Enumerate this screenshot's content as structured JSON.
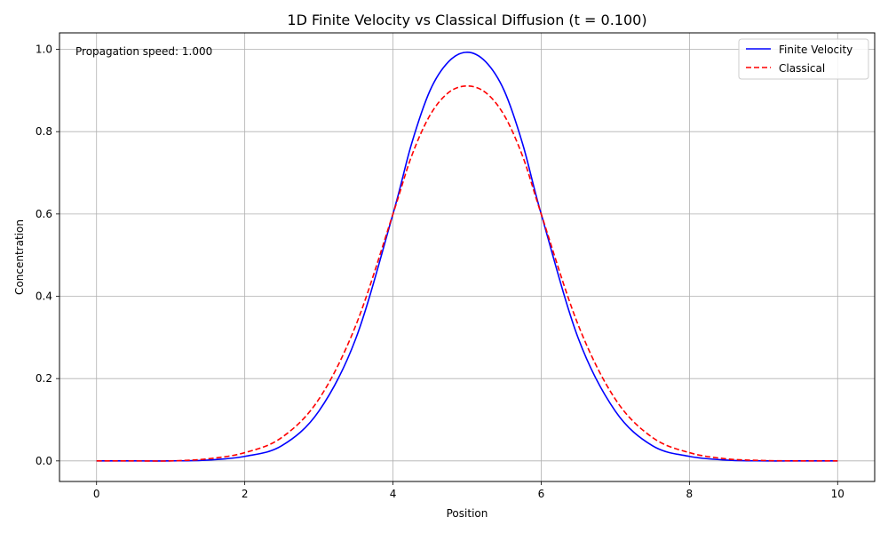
{
  "chart_data": {
    "type": "line",
    "title": "1D Finite Velocity vs Classical Diffusion (t = 0.100)",
    "xlabel": "Position",
    "ylabel": "Concentration",
    "xlim": [
      -0.5,
      10.5
    ],
    "ylim": [
      -0.05,
      1.04
    ],
    "xticks": [
      0,
      2,
      4,
      6,
      8,
      10
    ],
    "yticks": [
      0.0,
      0.2,
      0.4,
      0.6,
      0.8,
      1.0
    ],
    "xtick_labels": [
      "0",
      "2",
      "4",
      "6",
      "8",
      "10"
    ],
    "ytick_labels": [
      "0.0",
      "0.2",
      "0.4",
      "0.6",
      "0.8",
      "1.0"
    ],
    "grid": true,
    "legend_position": "top-right",
    "annotation": "Propagation speed: 1.000",
    "x": [
      0,
      0.5,
      1,
      1.5,
      2,
      2.5,
      3,
      3.5,
      4,
      4.25,
      4.5,
      4.75,
      5,
      5.25,
      5.5,
      5.75,
      6,
      6.5,
      7,
      7.5,
      8,
      8.5,
      9,
      9.5,
      10
    ],
    "series": [
      {
        "name": "Finite Velocity",
        "color": "#0000ff",
        "style": "solid",
        "values": [
          0.0,
          0.0,
          0.0,
          0.002,
          0.011,
          0.037,
          0.121,
          0.298,
          0.6,
          0.77,
          0.9,
          0.97,
          0.993,
          0.97,
          0.9,
          0.77,
          0.6,
          0.298,
          0.121,
          0.037,
          0.011,
          0.002,
          0.0,
          0.0,
          0.0
        ]
      },
      {
        "name": "Classical",
        "color": "#ff0000",
        "style": "dashed",
        "values": [
          0.0,
          0.0,
          0.0,
          0.005,
          0.02,
          0.057,
          0.15,
          0.33,
          0.6,
          0.74,
          0.84,
          0.895,
          0.911,
          0.895,
          0.84,
          0.74,
          0.6,
          0.33,
          0.15,
          0.057,
          0.02,
          0.005,
          0.001,
          0.0,
          0.0
        ]
      }
    ]
  }
}
